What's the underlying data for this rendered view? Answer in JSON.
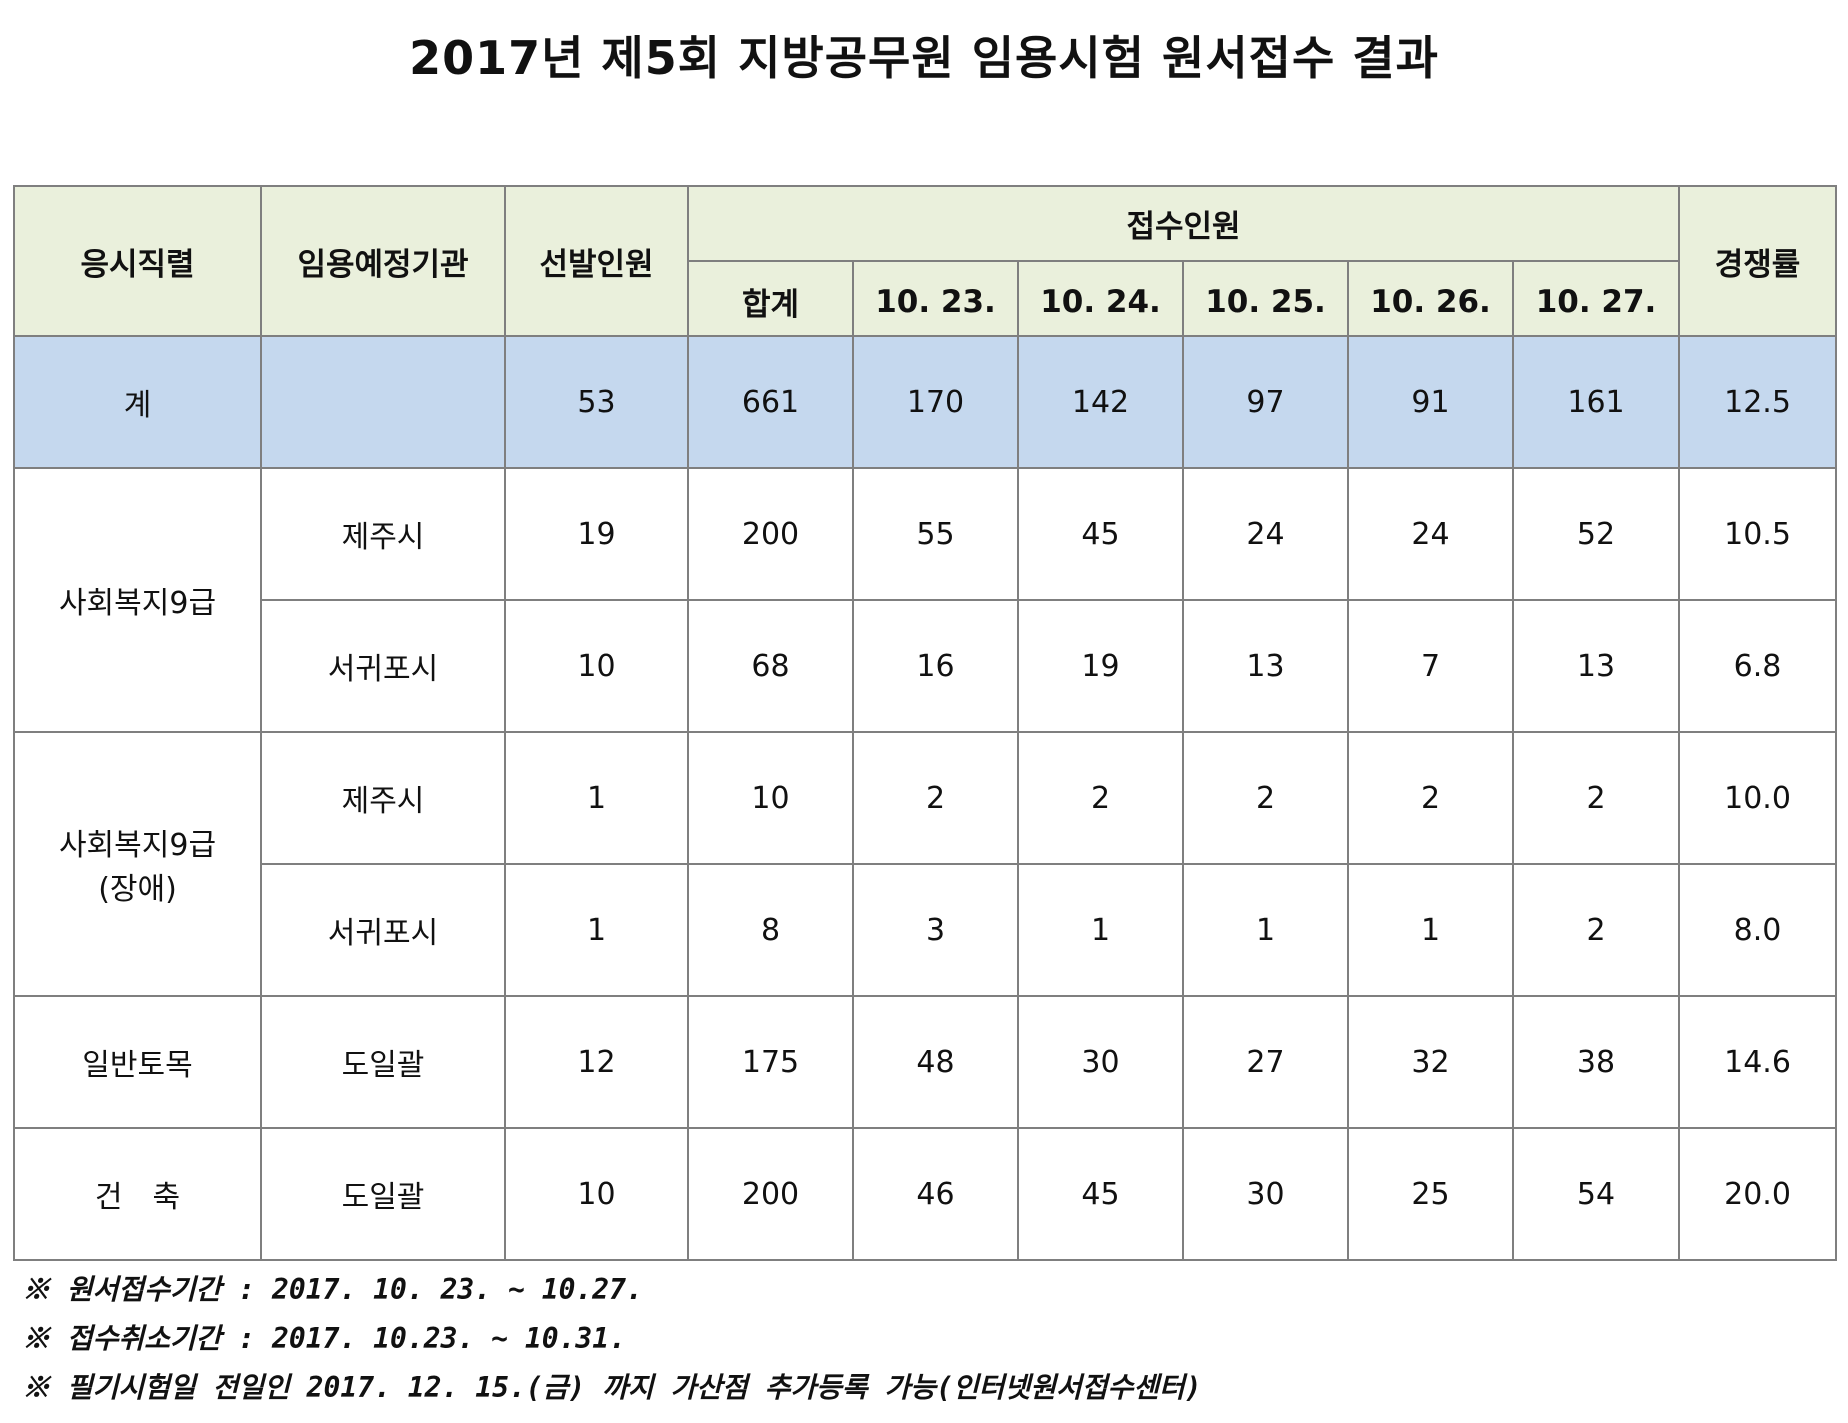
{
  "title": "2017년 제5회 지방공무원 임용시험 원서접수 결과",
  "headers": {
    "job": "응시직렬",
    "agency": "임용예정기관",
    "quota": "선발인원",
    "applicants": "접수인원",
    "ratio": "경쟁률",
    "sum": "합계",
    "dates": [
      "10. 23.",
      "10. 24.",
      "10. 25.",
      "10. 26.",
      "10. 27."
    ]
  },
  "total": {
    "label": "계",
    "agency": "",
    "quota": "53",
    "sum": "661",
    "days": [
      "170",
      "142",
      "97",
      "91",
      "161"
    ],
    "ratio": "12.5"
  },
  "groups": [
    {
      "job": "사회복지9급",
      "rows": [
        {
          "agency": "제주시",
          "quota": "19",
          "sum": "200",
          "days": [
            "55",
            "45",
            "24",
            "24",
            "52"
          ],
          "ratio": "10.5"
        },
        {
          "agency": "서귀포시",
          "quota": "10",
          "sum": "68",
          "days": [
            "16",
            "19",
            "13",
            "7",
            "13"
          ],
          "ratio": "6.8"
        }
      ]
    },
    {
      "job": "사회복지9급",
      "job_sub": "(장애)",
      "rows": [
        {
          "agency": "제주시",
          "quota": "1",
          "sum": "10",
          "days": [
            "2",
            "2",
            "2",
            "2",
            "2"
          ],
          "ratio": "10.0"
        },
        {
          "agency": "서귀포시",
          "quota": "1",
          "sum": "8",
          "days": [
            "3",
            "1",
            "1",
            "1",
            "2"
          ],
          "ratio": "8.0"
        }
      ]
    },
    {
      "job": "일반토목",
      "rows": [
        {
          "agency": "도일괄",
          "quota": "12",
          "sum": "175",
          "days": [
            "48",
            "30",
            "27",
            "32",
            "38"
          ],
          "ratio": "14.6"
        }
      ]
    },
    {
      "job": "건　축",
      "rows": [
        {
          "agency": "도일괄",
          "quota": "10",
          "sum": "200",
          "days": [
            "46",
            "45",
            "30",
            "25",
            "54"
          ],
          "ratio": "20.0"
        }
      ]
    }
  ],
  "notes": [
    "※ 원서접수기간 : 2017. 10. 23. ~ 10.27.",
    "※ 접수취소기간 : 2017. 10.23. ~ 10.31.",
    "※ 필기시험일 전일인 2017. 12. 15.(금) 까지 가산점 추가등록 가능(인터넷원서접수센터)"
  ]
}
